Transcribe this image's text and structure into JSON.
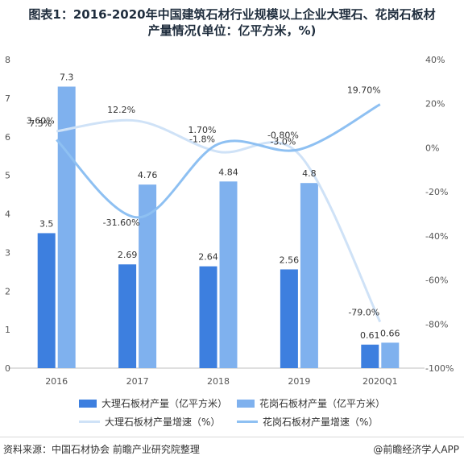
{
  "title": {
    "line1": "图表1：2016-2020年中国建筑石材行业规模以上企业大理石、花岗石板材",
    "line2": "产量情况(单位：亿平方米，%)"
  },
  "chart_data": {
    "type": "bar",
    "categories": [
      "2016",
      "2017",
      "2018",
      "2019",
      "2020Q1"
    ],
    "series": [
      {
        "name": "大理石板材产量（亿平方米）",
        "kind": "bar",
        "axis": "left",
        "color": "#3d7fdf",
        "values": [
          3.5,
          2.69,
          2.64,
          2.56,
          0.61
        ],
        "labels": [
          "3.5",
          "2.69",
          "2.64",
          "2.56",
          "0.61"
        ]
      },
      {
        "name": "花岗石板材产量（亿平方米）",
        "kind": "bar",
        "axis": "left",
        "color": "#7fb1ee",
        "values": [
          7.3,
          4.76,
          4.84,
          4.8,
          0.66
        ],
        "labels": [
          "7.3",
          "4.76",
          "4.84",
          "4.8",
          "0.66"
        ]
      },
      {
        "name": "大理石板材产量增速（%）",
        "kind": "line",
        "axis": "right",
        "color": "#cfe2f7",
        "values": [
          7.5,
          12.2,
          -1.8,
          -3.0,
          -79.0
        ],
        "labels": [
          "7.5%",
          "12.2%",
          "-1.8%",
          "-3.0%",
          "-79.0%"
        ]
      },
      {
        "name": "花岗石板材产量增速（%）",
        "kind": "line",
        "axis": "right",
        "color": "#8ec0f2",
        "values": [
          3.6,
          -31.6,
          1.7,
          -0.8,
          19.7
        ],
        "labels": [
          "3.60%",
          "-31.60%",
          "1.70%",
          "-0.80%",
          "19.70%"
        ]
      }
    ],
    "y_left": {
      "min": 0,
      "max": 8,
      "ticks": [
        "0",
        "1",
        "2",
        "3",
        "4",
        "5",
        "6",
        "7",
        "8"
      ]
    },
    "y_right": {
      "min": -100,
      "max": 40,
      "ticks": [
        "-100%",
        "-80%",
        "-60%",
        "-40%",
        "-20%",
        "0%",
        "20%",
        "40%"
      ]
    },
    "legend_position": "bottom",
    "grid": false
  },
  "footer": {
    "source": "资料来源：中国石材协会 前瞻产业研究院整理",
    "brand": "@前瞻经济学人APP"
  }
}
